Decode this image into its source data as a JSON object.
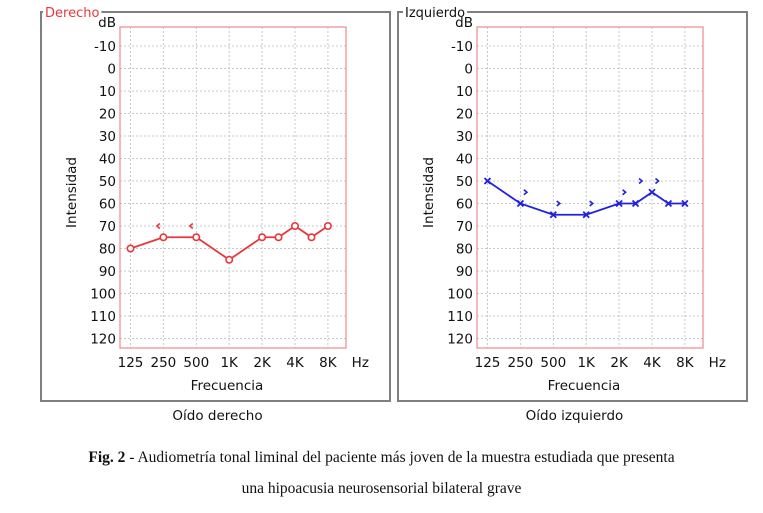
{
  "chart_data": [
    {
      "type": "line",
      "panel_label": "Derecho",
      "caption": "Oído derecho",
      "xlabel": "Frecuencia",
      "ylabel": "Intensidad",
      "yunit": "dB",
      "xunit": "Hz",
      "ylim": [
        -15,
        125
      ],
      "y_reversed": true,
      "y_ticks": [
        "-10",
        "0",
        "10",
        "20",
        "30",
        "40",
        "50",
        "60",
        "70",
        "80",
        "90",
        "100",
        "110",
        "120"
      ],
      "x_ticks": [
        "125",
        "250",
        "500",
        "1K",
        "2K",
        "4K",
        "8K"
      ],
      "grid": true,
      "color": "#e8373c",
      "air": {
        "marker": "circle",
        "points": [
          {
            "f": "125",
            "db": 80
          },
          {
            "f": "250",
            "db": 75
          },
          {
            "f": "500",
            "db": 75
          },
          {
            "f": "1K",
            "db": 85
          },
          {
            "f": "2K",
            "db": 75
          },
          {
            "f": "3K",
            "db": 75
          },
          {
            "f": "4K",
            "db": 70
          },
          {
            "f": "6K",
            "db": 75
          },
          {
            "f": "8K",
            "db": 70
          }
        ]
      },
      "bone": {
        "marker": "<",
        "points": [
          {
            "f": "250",
            "db": 70
          },
          {
            "f": "500",
            "db": 70
          }
        ]
      }
    },
    {
      "type": "line",
      "panel_label": "Izquierdo",
      "caption": "Oído izquierdo",
      "xlabel": "Frecuencia",
      "ylabel": "Intensidad",
      "yunit": "dB",
      "xunit": "Hz",
      "ylim": [
        -15,
        125
      ],
      "y_reversed": true,
      "y_ticks": [
        "-10",
        "0",
        "10",
        "20",
        "30",
        "40",
        "50",
        "60",
        "70",
        "80",
        "90",
        "100",
        "110",
        "120"
      ],
      "x_ticks": [
        "125",
        "250",
        "500",
        "1K",
        "2K",
        "4K",
        "8K"
      ],
      "grid": true,
      "color": "#2020e0",
      "air": {
        "marker": "x",
        "points": [
          {
            "f": "125",
            "db": 50
          },
          {
            "f": "250",
            "db": 60
          },
          {
            "f": "500",
            "db": 65
          },
          {
            "f": "1K",
            "db": 65
          },
          {
            "f": "2K",
            "db": 60
          },
          {
            "f": "3K",
            "db": 60
          },
          {
            "f": "4K",
            "db": 55
          },
          {
            "f": "6K",
            "db": 60
          },
          {
            "f": "8K",
            "db": 60
          }
        ]
      },
      "bone": {
        "marker": ">",
        "points": [
          {
            "f": "250",
            "db": 55
          },
          {
            "f": "500",
            "db": 60
          },
          {
            "f": "1K",
            "db": 60
          },
          {
            "f": "2K",
            "db": 55
          },
          {
            "f": "3K",
            "db": 50
          },
          {
            "f": "4K",
            "db": 50
          }
        ]
      }
    }
  ],
  "figure_caption": {
    "label": "Fig. 2",
    "text_line1": " - Audiometría tonal liminal del paciente más joven de la muestra estudiada que presenta",
    "text_line2": "una hipoacusia neurosensorial bilateral grave"
  }
}
